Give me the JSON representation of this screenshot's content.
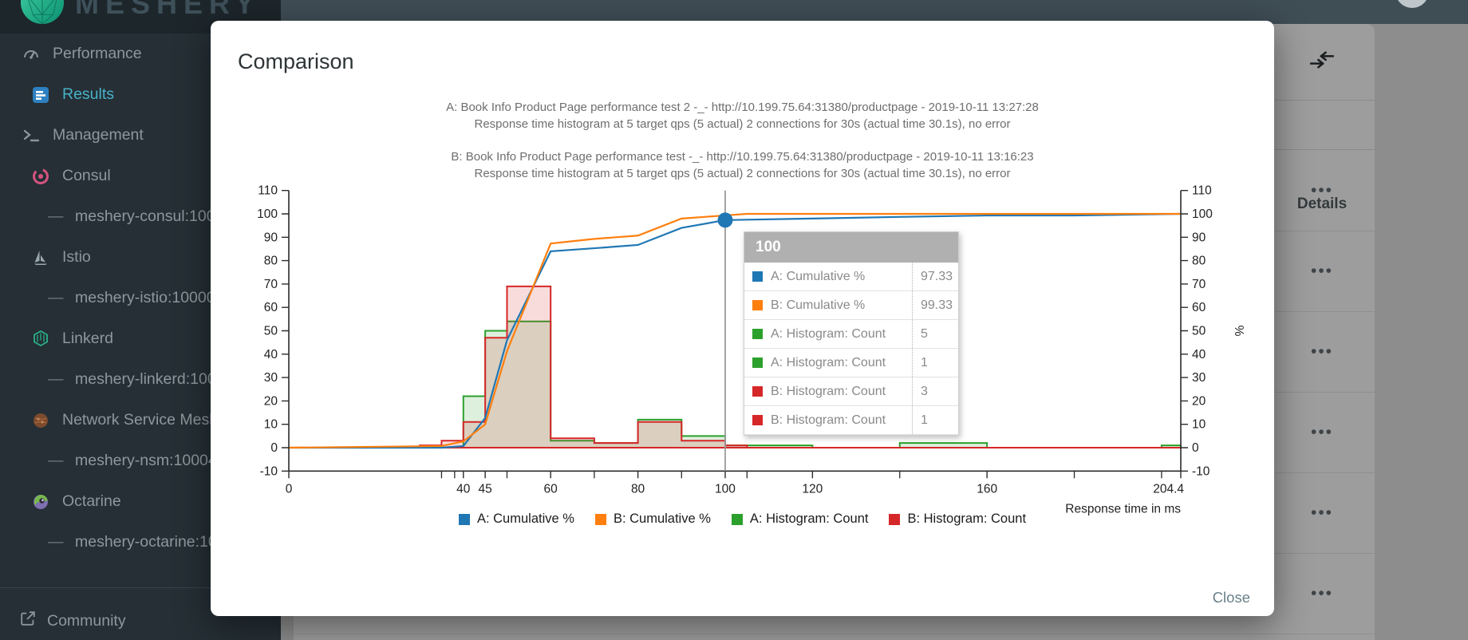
{
  "logo": {
    "text": "MESHERY"
  },
  "sidebar": {
    "sub_bullet": "—",
    "items": [
      {
        "label": "Performance",
        "icon": "performance-gauge-icon",
        "indent": 0,
        "active": false
      },
      {
        "label": "Results",
        "icon": "results-chart-icon",
        "indent": 1,
        "active": true
      },
      {
        "label": "Management",
        "icon": "terminal-icon",
        "indent": 0,
        "active": false
      },
      {
        "label": "Consul",
        "icon": "consul-icon",
        "indent": 1,
        "active": false
      },
      {
        "label": "meshery-consul:100",
        "icon": "dash",
        "indent": 2,
        "active": false
      },
      {
        "label": "Istio",
        "icon": "istio-icon",
        "indent": 1,
        "active": false
      },
      {
        "label": "meshery-istio:10000",
        "icon": "dash",
        "indent": 2,
        "active": false
      },
      {
        "label": "Linkerd",
        "icon": "linkerd-icon",
        "indent": 1,
        "active": false
      },
      {
        "label": "meshery-linkerd:100",
        "icon": "dash",
        "indent": 2,
        "active": false
      },
      {
        "label": "Network Service Mesh",
        "icon": "nsm-icon",
        "indent": 1,
        "active": false
      },
      {
        "label": "meshery-nsm:10004",
        "icon": "dash",
        "indent": 2,
        "active": false
      },
      {
        "label": "Octarine",
        "icon": "octarine-icon",
        "indent": 1,
        "active": false
      },
      {
        "label": "meshery-octarine:10",
        "icon": "dash",
        "indent": 2,
        "active": false
      }
    ],
    "footer": {
      "label": "Community",
      "icon": "external-link-icon"
    }
  },
  "results_panel": {
    "details_header": "Details",
    "menu_glyph": "•••",
    "visible_row_count": 6
  },
  "modal": {
    "title": "Comparison",
    "close_label": "Close",
    "tests": [
      {
        "title": "A: Book Info Product Page performance test 2 -_- http://10.199.75.64:31380/productpage - 2019-10-11 13:27:28",
        "subtitle": "Response time histogram at 5 target qps (5 actual) 2 connections for 30s (actual time 30.1s), no error"
      },
      {
        "title": "B: Book Info Product Page performance test -_- http://10.199.75.64:31380/productpage - 2019-10-11 13:16:23",
        "subtitle": "Response time histogram at 5 target qps (5 actual) 2 connections for 30s (actual time 30.1s), no error"
      }
    ]
  },
  "tooltip": {
    "x_header": "100",
    "rows": [
      {
        "series": "A: Cumulative %",
        "color": "#1f77b4",
        "value": "97.33"
      },
      {
        "series": "B: Cumulative %",
        "color": "#ff7f0e",
        "value": "99.33"
      },
      {
        "series": "A: Histogram: Count",
        "color": "#2ca02c",
        "value": "5"
      },
      {
        "series": "A: Histogram: Count",
        "color": "#2ca02c",
        "value": "1"
      },
      {
        "series": "B: Histogram: Count",
        "color": "#d62728",
        "value": "3"
      },
      {
        "series": "B: Histogram: Count",
        "color": "#d62728",
        "value": "1"
      }
    ]
  },
  "chart_data": {
    "type": "combo-histogram-cumulative",
    "xlabel": "Response time in ms",
    "right_axis_label": "%",
    "xlim": [
      0,
      204.4
    ],
    "ylim": [
      -10,
      110
    ],
    "y_tick_step": 10,
    "x_ticks_labeled": [
      {
        "v": 0,
        "label": "0"
      },
      {
        "v": 40,
        "label": "40"
      },
      {
        "v": 45,
        "label": "45"
      },
      {
        "v": 60,
        "label": "60"
      },
      {
        "v": 80,
        "label": "80"
      },
      {
        "v": 100,
        "label": "100"
      },
      {
        "v": 120,
        "label": "120"
      },
      {
        "v": 160,
        "label": "160"
      },
      {
        "v": 204.4,
        "label": "204.4"
      }
    ],
    "x_ticks_minor": [
      35,
      38,
      50,
      70,
      90,
      105,
      140,
      180,
      200
    ],
    "legend_position": "bottom",
    "highlight": {
      "x": 100,
      "series": "A: Cumulative %",
      "y": 97.33
    },
    "series": [
      {
        "name": "A: Cumulative %",
        "kind": "line",
        "color": "#1f77b4",
        "points": [
          [
            0,
            0
          ],
          [
            35,
            0
          ],
          [
            40,
            0.7
          ],
          [
            45,
            12.7
          ],
          [
            50,
            46
          ],
          [
            60,
            84
          ],
          [
            70,
            85.3
          ],
          [
            80,
            86.7
          ],
          [
            90,
            94
          ],
          [
            100,
            97.33
          ],
          [
            120,
            98
          ],
          [
            140,
            98.7
          ],
          [
            160,
            99.3
          ],
          [
            180,
            99.3
          ],
          [
            204.4,
            100
          ]
        ]
      },
      {
        "name": "B: Cumulative %",
        "kind": "line",
        "color": "#ff7f0e",
        "points": [
          [
            0,
            0
          ],
          [
            35,
            0.7
          ],
          [
            40,
            2.7
          ],
          [
            45,
            10
          ],
          [
            50,
            41.3
          ],
          [
            60,
            87.3
          ],
          [
            70,
            89.3
          ],
          [
            80,
            90.7
          ],
          [
            90,
            98
          ],
          [
            100,
            99.33
          ],
          [
            105,
            100
          ],
          [
            204.4,
            100
          ]
        ]
      },
      {
        "name": "A: Histogram: Count",
        "kind": "histogram",
        "color": "#2ca02c",
        "buckets": [
          [
            0,
            35,
            0
          ],
          [
            35,
            40,
            0
          ],
          [
            40,
            45,
            22
          ],
          [
            45,
            50,
            50
          ],
          [
            50,
            60,
            54
          ],
          [
            60,
            70,
            3
          ],
          [
            70,
            80,
            2
          ],
          [
            80,
            90,
            12
          ],
          [
            90,
            100,
            5
          ],
          [
            100,
            120,
            1
          ],
          [
            120,
            140,
            0
          ],
          [
            140,
            160,
            2
          ],
          [
            160,
            200,
            0
          ],
          [
            200,
            204.4,
            1
          ]
        ]
      },
      {
        "name": "B: Histogram: Count",
        "kind": "histogram",
        "color": "#d62728",
        "buckets": [
          [
            0,
            30,
            0
          ],
          [
            30,
            35,
            1
          ],
          [
            35,
            40,
            3
          ],
          [
            40,
            45,
            11
          ],
          [
            45,
            50,
            47
          ],
          [
            50,
            60,
            69
          ],
          [
            60,
            70,
            4
          ],
          [
            70,
            80,
            2
          ],
          [
            80,
            90,
            11
          ],
          [
            90,
            100,
            3
          ],
          [
            100,
            105,
            1
          ],
          [
            105,
            204.4,
            0
          ]
        ]
      }
    ]
  }
}
